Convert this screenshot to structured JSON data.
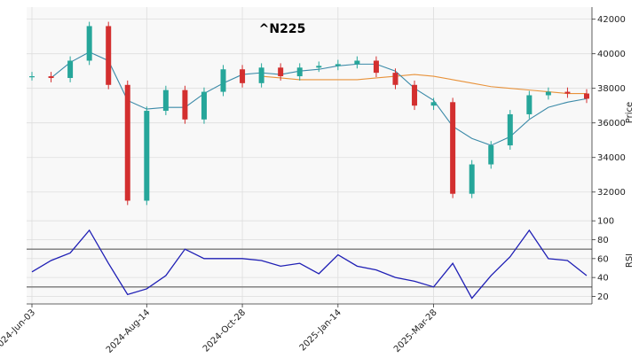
{
  "chart_data": [
    {
      "type": "candlestick",
      "title": "^N225",
      "ylabel": "Price",
      "ylim": [
        30500,
        42700
      ],
      "yticks": [
        32000,
        34000,
        36000,
        38000,
        40000,
        42000
      ],
      "grid": true,
      "xticks": [
        "2024-Jun-03",
        "2024-Aug-14",
        "2024-Oct-28",
        "2025-Jan-14",
        "2025-Mar-28"
      ],
      "x_dates": [
        "2024-06-03",
        "2024-06-17",
        "2024-07-01",
        "2024-07-11",
        "2024-07-25",
        "2024-08-05",
        "2024-08-14",
        "2024-08-28",
        "2024-09-11",
        "2024-09-26",
        "2024-10-10",
        "2024-10-28",
        "2024-11-11",
        "2024-11-25",
        "2024-12-09",
        "2024-12-23",
        "2025-01-14",
        "2025-01-28",
        "2025-02-10",
        "2025-02-25",
        "2025-03-11",
        "2025-03-28",
        "2025-04-07",
        "2025-04-11",
        "2025-04-21",
        "2025-05-02",
        "2025-05-15",
        "2025-05-27",
        "2025-06-06",
        "2025-06-13"
      ],
      "close": [
        38700,
        38600,
        39600,
        41600,
        38200,
        31500,
        36700,
        37900,
        36200,
        37800,
        39100,
        38300,
        39200,
        38700,
        39200,
        39300,
        39400,
        39600,
        38900,
        38200,
        37000,
        37200,
        31900,
        33600,
        34700,
        36500,
        37600,
        37800,
        37700,
        37400
      ],
      "ma_short": [
        null,
        38600,
        39500,
        40100,
        39600,
        37300,
        36800,
        36900,
        36900,
        37700,
        38300,
        38800,
        38900,
        38800,
        39000,
        39100,
        39300,
        39400,
        39400,
        39000,
        38000,
        37300,
        35800,
        35100,
        34700,
        35200,
        36200,
        36900,
        37200,
        37400
      ],
      "ma_long": [
        null,
        null,
        null,
        null,
        null,
        null,
        null,
        null,
        null,
        null,
        null,
        null,
        38700,
        38600,
        38500,
        38500,
        38500,
        38500,
        38600,
        38700,
        38800,
        38700,
        38500,
        38300,
        38100,
        38000,
        37900,
        37800,
        37700,
        37700
      ],
      "series_colors": {
        "up": "#26a69a",
        "down": "#d32f2f",
        "ma_short": "#3b8aa8",
        "ma_long": "#e8923a"
      }
    },
    {
      "type": "line",
      "ylabel": "RSI",
      "ylim": [
        12,
        103
      ],
      "yticks": [
        20,
        40,
        60,
        80,
        100
      ],
      "reference_lines": [
        70,
        30
      ],
      "values": [
        46,
        58,
        66,
        90,
        55,
        22,
        28,
        42,
        70,
        60,
        60,
        60,
        58,
        52,
        55,
        44,
        64,
        52,
        48,
        40,
        36,
        30,
        55,
        18,
        42,
        62,
        90,
        60,
        58,
        42
      ],
      "series_color": "#1f1fb5"
    }
  ]
}
